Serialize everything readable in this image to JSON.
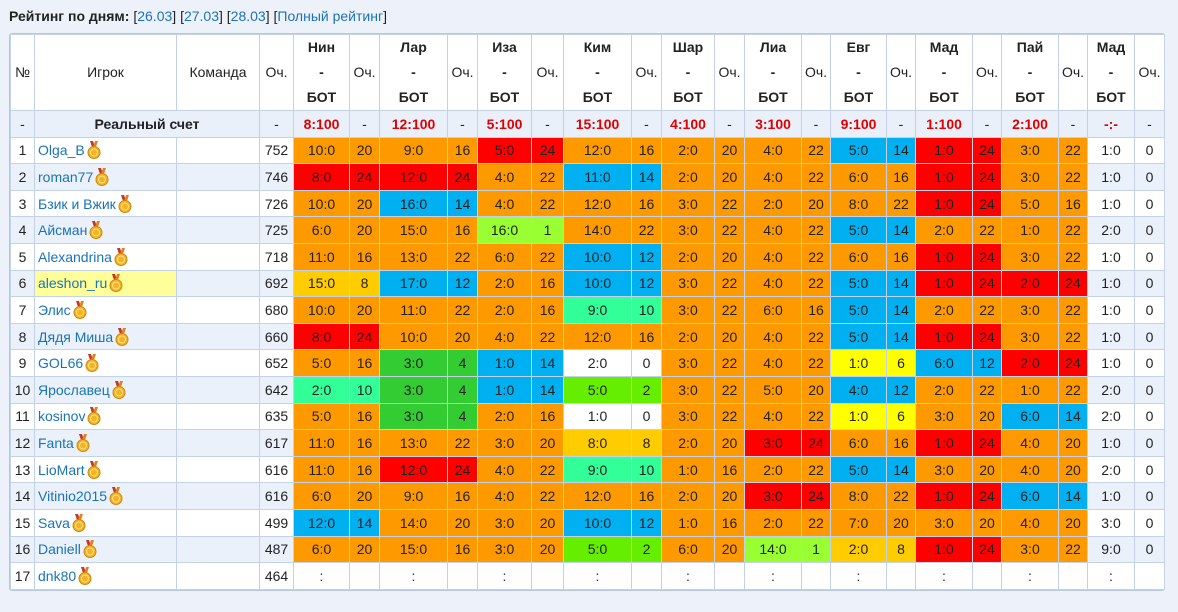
{
  "header": {
    "title": "Рейтинг по дням:",
    "open": "[",
    "close": "]",
    "links": [
      "26.03",
      "27.03",
      "28.03",
      "Полный рейтинг"
    ]
  },
  "table": {
    "columns": {
      "num": "№",
      "player": "Игрок",
      "team": "Команда",
      "points": "Оч.",
      "match_points": "Оч."
    },
    "matches": [
      {
        "home": "Нин",
        "sep": "-",
        "away": "БОТ"
      },
      {
        "home": "Лар",
        "sep": "-",
        "away": "БОТ"
      },
      {
        "home": "Иза",
        "sep": "-",
        "away": "БОТ"
      },
      {
        "home": "Ким",
        "sep": "-",
        "away": "БОТ"
      },
      {
        "home": "Шар",
        "sep": "-",
        "away": "БОТ"
      },
      {
        "home": "Лиа",
        "sep": "-",
        "away": "БОТ"
      },
      {
        "home": "Евг",
        "sep": "-",
        "away": "БОТ"
      },
      {
        "home": "Мад",
        "sep": "-",
        "away": "БОТ"
      },
      {
        "home": "Пай",
        "sep": "-",
        "away": "БОТ"
      },
      {
        "home": "Мад",
        "sep": "-",
        "away": "БОТ"
      }
    ],
    "real_row": {
      "num": "-",
      "label": "Реальный счет",
      "points": "-",
      "scores": [
        [
          "8:100",
          "-"
        ],
        [
          "12:100",
          "-"
        ],
        [
          "5:100",
          "-"
        ],
        [
          "15:100",
          "-"
        ],
        [
          "4:100",
          "-"
        ],
        [
          "3:100",
          "-"
        ],
        [
          "9:100",
          "-"
        ],
        [
          "1:100",
          "-"
        ],
        [
          "2:100",
          "-"
        ],
        [
          "-:-",
          "-"
        ]
      ]
    },
    "rows": [
      {
        "num": 1,
        "player": "Olga_B",
        "points": 752,
        "cells": [
          [
            "10:0",
            20,
            "#ff9900"
          ],
          [
            "9:0",
            16,
            "#ff9900"
          ],
          [
            "5:0",
            24,
            "#ff0000"
          ],
          [
            "12:0",
            16,
            "#ff9900"
          ],
          [
            "2:0",
            20,
            "#ff9900"
          ],
          [
            "4:0",
            22,
            "#ff9900"
          ],
          [
            "5:0",
            14,
            "#00b0f0"
          ],
          [
            "1:0",
            24,
            "#ff0000"
          ],
          [
            "3:0",
            22,
            "#ff9900"
          ],
          [
            "1:0",
            0
          ]
        ]
      },
      {
        "num": 2,
        "player": "roman77",
        "points": 746,
        "cells": [
          [
            "8:0",
            24,
            "#ff0000"
          ],
          [
            "12:0",
            24,
            "#ff0000"
          ],
          [
            "4:0",
            22,
            "#ff9900"
          ],
          [
            "11:0",
            14,
            "#00b0f0"
          ],
          [
            "2:0",
            20,
            "#ff9900"
          ],
          [
            "4:0",
            22,
            "#ff9900"
          ],
          [
            "6:0",
            16,
            "#ff9900"
          ],
          [
            "1:0",
            24,
            "#ff0000"
          ],
          [
            "3:0",
            22,
            "#ff9900"
          ],
          [
            "1:0",
            0
          ]
        ]
      },
      {
        "num": 3,
        "player": "Бзик и Вжик",
        "points": 726,
        "cells": [
          [
            "10:0",
            20,
            "#ff9900"
          ],
          [
            "16:0",
            14,
            "#00b0f0"
          ],
          [
            "4:0",
            22,
            "#ff9900"
          ],
          [
            "12:0",
            16,
            "#ff9900"
          ],
          [
            "3:0",
            22,
            "#ff9900"
          ],
          [
            "2:0",
            20,
            "#ff9900"
          ],
          [
            "8:0",
            22,
            "#ff9900"
          ],
          [
            "1:0",
            24,
            "#ff0000"
          ],
          [
            "5:0",
            16,
            "#ff9900"
          ],
          [
            "1:0",
            0
          ]
        ]
      },
      {
        "num": 4,
        "player": "Айсман",
        "points": 725,
        "cells": [
          [
            "6:0",
            20,
            "#ff9900"
          ],
          [
            "15:0",
            16,
            "#ff9900"
          ],
          [
            "16:0",
            1,
            "#99ff33"
          ],
          [
            "14:0",
            22,
            "#ff9900"
          ],
          [
            "3:0",
            22,
            "#ff9900"
          ],
          [
            "4:0",
            22,
            "#ff9900"
          ],
          [
            "5:0",
            14,
            "#00b0f0"
          ],
          [
            "2:0",
            22,
            "#ff9900"
          ],
          [
            "1:0",
            22,
            "#ff9900"
          ],
          [
            "2:0",
            0
          ]
        ]
      },
      {
        "num": 5,
        "player": "Alexandrina",
        "points": 718,
        "cells": [
          [
            "11:0",
            16,
            "#ff9900"
          ],
          [
            "13:0",
            22,
            "#ff9900"
          ],
          [
            "6:0",
            22,
            "#ff9900"
          ],
          [
            "10:0",
            12,
            "#00b0f0"
          ],
          [
            "2:0",
            20,
            "#ff9900"
          ],
          [
            "4:0",
            22,
            "#ff9900"
          ],
          [
            "6:0",
            16,
            "#ff9900"
          ],
          [
            "1:0",
            24,
            "#ff0000"
          ],
          [
            "3:0",
            22,
            "#ff9900"
          ],
          [
            "1:0",
            0
          ]
        ]
      },
      {
        "num": 6,
        "player": "aleshon_ru",
        "highlight": "#ffff99",
        "points": 692,
        "cells": [
          [
            "15:0",
            8,
            "#ffcc00"
          ],
          [
            "17:0",
            12,
            "#00b0f0"
          ],
          [
            "2:0",
            16,
            "#ff9900"
          ],
          [
            "10:0",
            12,
            "#00b0f0"
          ],
          [
            "3:0",
            22,
            "#ff9900"
          ],
          [
            "4:0",
            22,
            "#ff9900"
          ],
          [
            "5:0",
            14,
            "#00b0f0"
          ],
          [
            "1:0",
            24,
            "#ff0000"
          ],
          [
            "2:0",
            24,
            "#ff0000"
          ],
          [
            "1:0",
            0
          ]
        ]
      },
      {
        "num": 7,
        "player": "Элис",
        "points": 680,
        "cells": [
          [
            "10:0",
            20,
            "#ff9900"
          ],
          [
            "11:0",
            22,
            "#ff9900"
          ],
          [
            "2:0",
            16,
            "#ff9900"
          ],
          [
            "9:0",
            10,
            "#33ff99"
          ],
          [
            "3:0",
            22,
            "#ff9900"
          ],
          [
            "6:0",
            16,
            "#ff9900"
          ],
          [
            "5:0",
            14,
            "#00b0f0"
          ],
          [
            "2:0",
            22,
            "#ff9900"
          ],
          [
            "3:0",
            22,
            "#ff9900"
          ],
          [
            "1:0",
            0
          ]
        ]
      },
      {
        "num": 8,
        "player": "Дядя Миша",
        "points": 660,
        "cells": [
          [
            "8:0",
            24,
            "#ff0000"
          ],
          [
            "10:0",
            20,
            "#ff9900"
          ],
          [
            "4:0",
            22,
            "#ff9900"
          ],
          [
            "12:0",
            16,
            "#ff9900"
          ],
          [
            "2:0",
            20,
            "#ff9900"
          ],
          [
            "4:0",
            22,
            "#ff9900"
          ],
          [
            "5:0",
            14,
            "#00b0f0"
          ],
          [
            "1:0",
            24,
            "#ff0000"
          ],
          [
            "3:0",
            22,
            "#ff9900"
          ],
          [
            "1:0",
            0
          ]
        ]
      },
      {
        "num": 9,
        "player": "GOL66",
        "points": 652,
        "cells": [
          [
            "5:0",
            16,
            "#ff9900"
          ],
          [
            "3:0",
            4,
            "#33cc33"
          ],
          [
            "1:0",
            14,
            "#00b0f0"
          ],
          [
            "2:0",
            0,
            "#ffffff"
          ],
          [
            "3:0",
            22,
            "#ff9900"
          ],
          [
            "4:0",
            22,
            "#ff9900"
          ],
          [
            "1:0",
            6,
            "#ffff00"
          ],
          [
            "6:0",
            12,
            "#00b0f0"
          ],
          [
            "2:0",
            24,
            "#ff0000"
          ],
          [
            "1:0",
            0
          ]
        ]
      },
      {
        "num": 10,
        "player": "Ярославец",
        "points": 642,
        "cells": [
          [
            "2:0",
            10,
            "#33ff99"
          ],
          [
            "3:0",
            4,
            "#33cc33"
          ],
          [
            "1:0",
            14,
            "#00b0f0"
          ],
          [
            "5:0",
            2,
            "#66ee00"
          ],
          [
            "3:0",
            22,
            "#ff9900"
          ],
          [
            "5:0",
            20,
            "#ff9900"
          ],
          [
            "4:0",
            12,
            "#00b0f0"
          ],
          [
            "2:0",
            22,
            "#ff9900"
          ],
          [
            "1:0",
            22,
            "#ff9900"
          ],
          [
            "2:0",
            0
          ]
        ]
      },
      {
        "num": 11,
        "player": "kosinov",
        "points": 635,
        "cells": [
          [
            "5:0",
            16,
            "#ff9900"
          ],
          [
            "3:0",
            4,
            "#33cc33"
          ],
          [
            "2:0",
            16,
            "#ff9900"
          ],
          [
            "1:0",
            0,
            "#ffffff"
          ],
          [
            "3:0",
            22,
            "#ff9900"
          ],
          [
            "4:0",
            22,
            "#ff9900"
          ],
          [
            "1:0",
            6,
            "#ffff00"
          ],
          [
            "3:0",
            20,
            "#ff9900"
          ],
          [
            "6:0",
            14,
            "#00b0f0"
          ],
          [
            "2:0",
            0
          ]
        ]
      },
      {
        "num": 12,
        "player": "Fanta",
        "points": 617,
        "cells": [
          [
            "11:0",
            16,
            "#ff9900"
          ],
          [
            "13:0",
            22,
            "#ff9900"
          ],
          [
            "3:0",
            20,
            "#ff9900"
          ],
          [
            "8:0",
            8,
            "#ffcc00"
          ],
          [
            "2:0",
            20,
            "#ff9900"
          ],
          [
            "3:0",
            24,
            "#ff0000"
          ],
          [
            "6:0",
            16,
            "#ff9900"
          ],
          [
            "1:0",
            24,
            "#ff0000"
          ],
          [
            "4:0",
            20,
            "#ff9900"
          ],
          [
            "1:0",
            0
          ]
        ]
      },
      {
        "num": 13,
        "player": "LioMart",
        "points": 616,
        "cells": [
          [
            "11:0",
            16,
            "#ff9900"
          ],
          [
            "12:0",
            24,
            "#ff0000"
          ],
          [
            "4:0",
            22,
            "#ff9900"
          ],
          [
            "9:0",
            10,
            "#33ff99"
          ],
          [
            "1:0",
            16,
            "#ff9900"
          ],
          [
            "2:0",
            22,
            "#ff9900"
          ],
          [
            "5:0",
            14,
            "#00b0f0"
          ],
          [
            "3:0",
            20,
            "#ff9900"
          ],
          [
            "4:0",
            20,
            "#ff9900"
          ],
          [
            "2:0",
            0
          ]
        ]
      },
      {
        "num": 14,
        "player": "Vitinio2015",
        "points": 616,
        "cells": [
          [
            "6:0",
            20,
            "#ff9900"
          ],
          [
            "9:0",
            16,
            "#ff9900"
          ],
          [
            "4:0",
            22,
            "#ff9900"
          ],
          [
            "12:0",
            16,
            "#ff9900"
          ],
          [
            "2:0",
            20,
            "#ff9900"
          ],
          [
            "3:0",
            24,
            "#ff0000"
          ],
          [
            "8:0",
            22,
            "#ff9900"
          ],
          [
            "1:0",
            24,
            "#ff0000"
          ],
          [
            "6:0",
            14,
            "#00b0f0"
          ],
          [
            "1:0",
            0
          ]
        ]
      },
      {
        "num": 15,
        "player": "Sava",
        "points": 499,
        "cells": [
          [
            "12:0",
            14,
            "#00b0f0"
          ],
          [
            "14:0",
            20,
            "#ff9900"
          ],
          [
            "3:0",
            20,
            "#ff9900"
          ],
          [
            "10:0",
            12,
            "#00b0f0"
          ],
          [
            "1:0",
            16,
            "#ff9900"
          ],
          [
            "2:0",
            22,
            "#ff9900"
          ],
          [
            "7:0",
            20,
            "#ff9900"
          ],
          [
            "3:0",
            20,
            "#ff9900"
          ],
          [
            "4:0",
            20,
            "#ff9900"
          ],
          [
            "3:0",
            0
          ]
        ]
      },
      {
        "num": 16,
        "player": "Daniell",
        "points": 487,
        "cells": [
          [
            "6:0",
            20,
            "#ff9900"
          ],
          [
            "15:0",
            16,
            "#ff9900"
          ],
          [
            "3:0",
            20,
            "#ff9900"
          ],
          [
            "5:0",
            2,
            "#66ee00"
          ],
          [
            "6:0",
            20,
            "#ff9900"
          ],
          [
            "14:0",
            1,
            "#99ff33"
          ],
          [
            "2:0",
            8,
            "#ffcc00"
          ],
          [
            "1:0",
            24,
            "#ff0000"
          ],
          [
            "3:0",
            22,
            "#ff9900"
          ],
          [
            "9:0",
            0
          ]
        ]
      },
      {
        "num": 17,
        "player": "dnk80",
        "points": 464,
        "cells": [
          [
            ":"
          ],
          [
            ":"
          ],
          [
            ":"
          ],
          [
            ":"
          ],
          [
            ":"
          ],
          [
            ":"
          ],
          [
            ":"
          ],
          [
            ":"
          ],
          [
            ":"
          ],
          [
            ":"
          ]
        ]
      }
    ]
  }
}
